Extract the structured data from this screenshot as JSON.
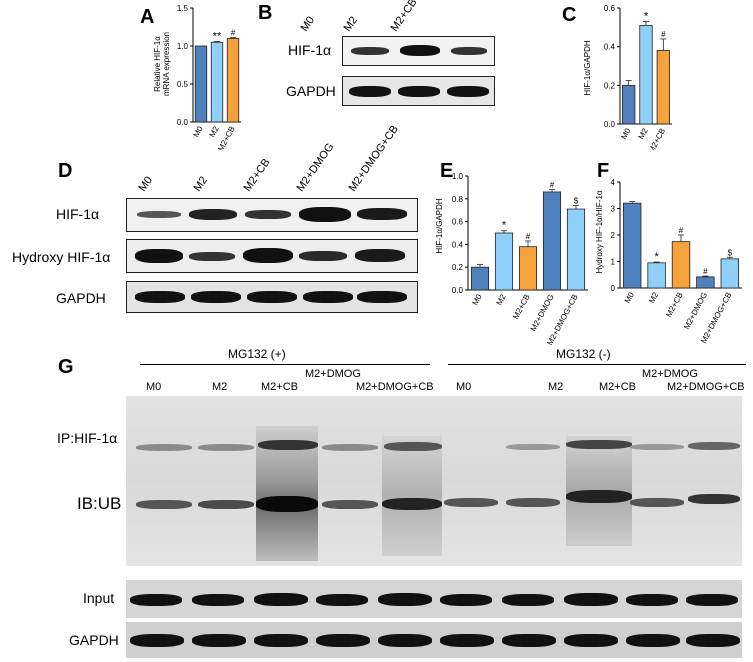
{
  "panels": {
    "A": {
      "letter": "A",
      "ylabel_line1": "Relative HIF-1α",
      "ylabel_line2": "mRNA expression",
      "chart_data": {
        "type": "bar",
        "categories": [
          "M0",
          "M2",
          "M2+CB"
        ],
        "values": [
          1.0,
          1.05,
          1.1
        ],
        "errors": [
          0.0,
          0.01,
          0.01
        ],
        "ylim": [
          0,
          1.5
        ],
        "yticks": [
          "0.0",
          "0.5",
          "1.0",
          "1.5"
        ],
        "ytick_values": [
          0,
          0.5,
          1.0,
          1.5
        ],
        "annotations": [
          "",
          "**",
          "#"
        ],
        "colors": [
          "#4f81bd",
          "#8fd0f8",
          "#f6a23c"
        ]
      }
    },
    "B": {
      "letter": "B",
      "lanes": [
        "M0",
        "M2",
        "M2+CB"
      ],
      "rows": [
        "HIF-1α",
        "GAPDH"
      ]
    },
    "C": {
      "letter": "C",
      "ylabel": "HIF-1α/GAPDH",
      "chart_data": {
        "type": "bar",
        "categories": [
          "M0",
          "M2",
          "M2+CB"
        ],
        "values": [
          0.2,
          0.51,
          0.38
        ],
        "errors": [
          0.025,
          0.02,
          0.06
        ],
        "ylim": [
          0,
          0.6
        ],
        "yticks": [
          "0.0",
          "0.2",
          "0.4",
          "0.6"
        ],
        "ytick_values": [
          0,
          0.2,
          0.4,
          0.6
        ],
        "annotations": [
          "",
          "*",
          "#"
        ],
        "colors": [
          "#4f81bd",
          "#8fd0f8",
          "#f6a23c"
        ]
      }
    },
    "D": {
      "letter": "D",
      "lanes": [
        "M0",
        "M2",
        "M2+CB",
        "M2+DMOG",
        "M2+DMOG+CB"
      ],
      "rows": [
        "HIF-1α",
        "Hydroxy HIF-1α",
        "GAPDH"
      ]
    },
    "E": {
      "letter": "E",
      "ylabel": "HIF-1α/GAPDH",
      "chart_data": {
        "type": "bar",
        "categories": [
          "M0",
          "M2",
          "M2+CB",
          "M2+DMOG",
          "M2+DMOG+CB"
        ],
        "values": [
          0.2,
          0.5,
          0.38,
          0.86,
          0.71
        ],
        "errors": [
          0.025,
          0.02,
          0.05,
          0.02,
          0.03
        ],
        "ylim": [
          0,
          1.0
        ],
        "yticks": [
          "0.0",
          "0.2",
          "0.4",
          "0.6",
          "0.8",
          "1.0"
        ],
        "ytick_values": [
          0,
          0.2,
          0.4,
          0.6,
          0.8,
          1.0
        ],
        "annotations": [
          "",
          "*",
          "#",
          "#",
          "$"
        ],
        "colors": [
          "#4f81bd",
          "#8fd0f8",
          "#f6a23c",
          "#4f81bd",
          "#8fd0f8"
        ]
      }
    },
    "F": {
      "letter": "F",
      "ylabel": "Hydroxy HIF-1α/HIF-1α",
      "chart_data": {
        "type": "bar",
        "categories": [
          "M0",
          "M2",
          "M2+CB",
          "M2+DMOG",
          "M2+DMOG+CB"
        ],
        "values": [
          3.2,
          0.95,
          1.75,
          0.42,
          1.1
        ],
        "errors": [
          0.06,
          0.03,
          0.25,
          0.03,
          0.06
        ],
        "ylim": [
          0,
          4
        ],
        "yticks": [
          "0",
          "1",
          "2",
          "3",
          "4"
        ],
        "ytick_values": [
          0,
          1,
          2,
          3,
          4
        ],
        "annotations": [
          "",
          "*",
          "#",
          "#",
          "$"
        ],
        "colors": [
          "#4f81bd",
          "#8fd0f8",
          "#f6a23c",
          "#4f81bd",
          "#8fd0f8"
        ]
      }
    },
    "G": {
      "letter": "G",
      "group_plus": "MG132 (+)",
      "group_minus": "MG132 (-)",
      "lanes_plus": [
        "M0",
        "M2",
        "M2+CB",
        "M2+DMOG",
        "M2+DMOG+CB"
      ],
      "lanes_minus": [
        "M0",
        "M2",
        "M2+CB",
        "M2+DMOG",
        "M2+DMOG+CB"
      ],
      "row_ip": "IP:HIF-1α",
      "row_ib": "IB:UB",
      "row_input": "Input",
      "row_gapdh": "GAPDH"
    }
  }
}
